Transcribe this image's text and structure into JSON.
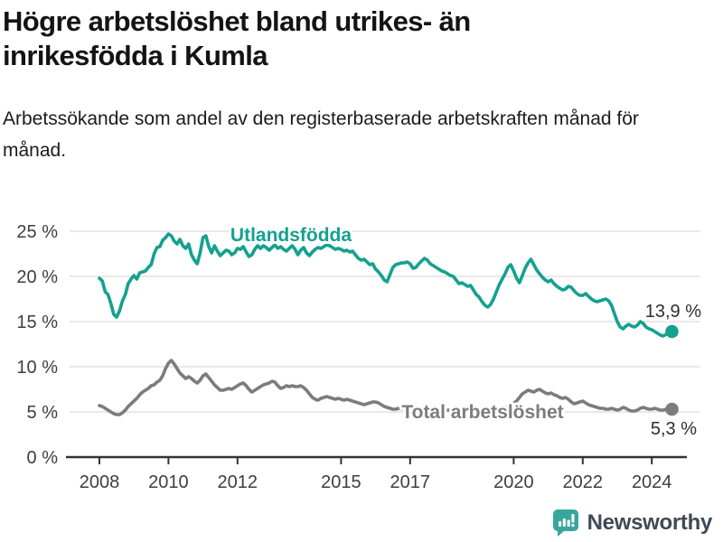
{
  "header": {
    "title": "Högre arbetslöshet bland utrikes- än inrikesfödda i Kumla",
    "subtitle": "Arbetssökande som andel av den registerbaserade arbetskraften månad för månad."
  },
  "footer": {
    "brand": "Newsworthy",
    "logo_icon": "speech-bubble-bar-chart-icon"
  },
  "colors": {
    "accent_teal": "#14a18f",
    "series_gray": "#7c7c7c",
    "logo_teal": "#38a79b",
    "grid": "#e2e2e2",
    "axis": "#333333"
  },
  "chart_data": {
    "type": "line",
    "unit": "%",
    "grid": "horizontal",
    "legend": "inline-labels",
    "x_start_year": 2008,
    "x_step_months": 1,
    "x_ticks": [
      2008,
      2010,
      2012,
      2015,
      2017,
      2020,
      2022,
      2024
    ],
    "xlim": [
      2007.1,
      2025.4
    ],
    "y_ticks": [
      0,
      5,
      10,
      15,
      20,
      25
    ],
    "y_tick_suffix": " %",
    "ylim": [
      0,
      27.6
    ],
    "series": [
      {
        "name": "Utlandsfödda",
        "color": "#14a18f",
        "last_value_label": "13,9 %",
        "last_value": 13.9,
        "values": [
          19.8,
          19.5,
          18.3,
          18.0,
          17.0,
          15.8,
          15.5,
          16.2,
          17.3,
          18.0,
          19.2,
          19.7,
          20.1,
          19.7,
          20.4,
          20.5,
          20.6,
          21.0,
          21.3,
          22.5,
          23.2,
          23.3,
          24.0,
          24.3,
          24.7,
          24.5,
          23.9,
          23.6,
          24.1,
          23.4,
          23.1,
          23.6,
          22.4,
          21.8,
          21.4,
          22.6,
          24.3,
          24.5,
          23.3,
          22.6,
          23.4,
          22.8,
          22.3,
          22.6,
          22.9,
          22.8,
          22.4,
          22.6,
          23.1,
          23.0,
          23.3,
          22.7,
          22.2,
          22.4,
          23.0,
          23.4,
          23.1,
          23.4,
          23.2,
          22.9,
          23.2,
          23.5,
          23.1,
          23.3,
          23.0,
          22.8,
          23.1,
          23.4,
          23.0,
          22.4,
          22.9,
          23.2,
          22.6,
          22.3,
          22.7,
          23.0,
          23.2,
          23.1,
          23.3,
          23.5,
          23.4,
          23.2,
          23.0,
          23.1,
          23.0,
          22.8,
          22.9,
          22.7,
          22.8,
          22.4,
          22.0,
          21.8,
          21.9,
          21.6,
          21.3,
          21.4,
          20.8,
          20.5,
          20.1,
          19.6,
          19.4,
          20.2,
          21.0,
          21.3,
          21.4,
          21.5,
          21.5,
          21.6,
          21.4,
          20.9,
          21.0,
          21.4,
          21.7,
          22.0,
          21.8,
          21.4,
          21.2,
          21.0,
          20.8,
          20.6,
          20.5,
          20.3,
          20.1,
          20.0,
          19.6,
          19.2,
          19.3,
          19.1,
          18.9,
          19.0,
          18.5,
          18.0,
          17.7,
          17.2,
          16.8,
          16.6,
          16.9,
          17.5,
          18.3,
          19.1,
          19.7,
          20.3,
          21.0,
          21.3,
          20.6,
          19.8,
          19.3,
          20.1,
          20.9,
          21.5,
          21.9,
          21.3,
          20.7,
          20.3,
          19.9,
          19.6,
          19.4,
          19.6,
          19.2,
          18.9,
          18.7,
          18.5,
          18.6,
          18.9,
          18.8,
          18.4,
          18.1,
          17.9,
          17.9,
          18.1,
          17.8,
          17.5,
          17.3,
          17.2,
          17.3,
          17.4,
          17.5,
          17.3,
          16.8,
          15.9,
          15.0,
          14.4,
          14.2,
          14.5,
          14.7,
          14.5,
          14.4,
          14.6,
          15.0,
          14.8,
          14.4,
          14.2,
          14.1,
          13.9,
          13.7,
          13.5,
          13.4,
          13.6,
          13.8,
          13.9
        ]
      },
      {
        "name": "Total arbetslöshet",
        "color": "#7c7c7c",
        "last_value_label": "5,3 %",
        "last_value": 5.3,
        "values": [
          5.7,
          5.6,
          5.4,
          5.2,
          5.0,
          4.8,
          4.7,
          4.7,
          4.9,
          5.2,
          5.6,
          5.9,
          6.2,
          6.5,
          6.9,
          7.2,
          7.4,
          7.6,
          7.9,
          8.0,
          8.3,
          8.5,
          9.0,
          9.8,
          10.4,
          10.7,
          10.3,
          9.8,
          9.3,
          9.0,
          8.7,
          8.9,
          8.7,
          8.4,
          8.2,
          8.5,
          9.0,
          9.2,
          8.8,
          8.4,
          8.0,
          7.7,
          7.4,
          7.4,
          7.5,
          7.6,
          7.5,
          7.7,
          7.9,
          8.1,
          8.2,
          7.9,
          7.5,
          7.2,
          7.4,
          7.6,
          7.8,
          8.0,
          8.1,
          8.2,
          8.4,
          8.3,
          7.9,
          7.6,
          7.7,
          7.9,
          7.8,
          7.9,
          7.8,
          7.8,
          7.9,
          7.7,
          7.4,
          7.0,
          6.6,
          6.4,
          6.3,
          6.5,
          6.6,
          6.7,
          6.6,
          6.5,
          6.4,
          6.5,
          6.4,
          6.3,
          6.4,
          6.3,
          6.2,
          6.1,
          6.0,
          5.9,
          5.8,
          5.9,
          6.0,
          6.1,
          6.1,
          6.0,
          5.8,
          5.6,
          5.5,
          5.4,
          5.3,
          5.3,
          5.4,
          5.4,
          5.3,
          5.2,
          5.2,
          5.3,
          5.4,
          5.3,
          5.3,
          5.4,
          5.3,
          5.2,
          5.2,
          5.3,
          5.2,
          5.1,
          5.1,
          5.2,
          5.2,
          5.1,
          5.0,
          5.0,
          5.1,
          5.0,
          5.0,
          5.1,
          5.0,
          4.9,
          4.9,
          5.0,
          5.0,
          4.9,
          5.0,
          5.1,
          5.2,
          5.3,
          5.4,
          5.5,
          5.6,
          5.8,
          6.0,
          6.2,
          6.6,
          7.0,
          7.2,
          7.4,
          7.3,
          7.2,
          7.4,
          7.5,
          7.3,
          7.1,
          7.0,
          7.1,
          6.9,
          6.8,
          6.6,
          6.5,
          6.6,
          6.4,
          6.1,
          5.9,
          6.0,
          6.1,
          6.2,
          6.0,
          5.8,
          5.7,
          5.6,
          5.5,
          5.4,
          5.4,
          5.3,
          5.3,
          5.4,
          5.3,
          5.2,
          5.3,
          5.5,
          5.4,
          5.2,
          5.1,
          5.1,
          5.2,
          5.4,
          5.5,
          5.4,
          5.3,
          5.3,
          5.4,
          5.3,
          5.2,
          5.2,
          5.3,
          5.3,
          5.3
        ]
      }
    ]
  }
}
